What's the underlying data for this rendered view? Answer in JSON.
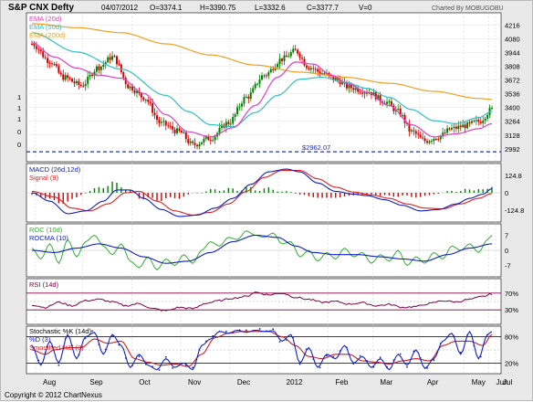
{
  "header": {
    "symbol": "S&P CNX Defty",
    "date": "04/07/2012",
    "open": "O=3374.1",
    "high": "H=3390.75",
    "low": "L=3332.6",
    "close": "C=3377.7",
    "volume": "V=0",
    "charted_by": "Charted By MOBUGOBU"
  },
  "footer": {
    "copyright": "Copyright © 2012 ChartNexus"
  },
  "colors": {
    "ema20": "#e040c0",
    "ema50": "#30c0c0",
    "ema200": "#f0a020",
    "bull": "#008000",
    "bear": "#d00000",
    "support": "#2030c0",
    "macd": "#1020c0",
    "signal": "#e02020",
    "roc": "#30b030",
    "rocma": "#1020c0",
    "rsi": "#800040",
    "stoch_k": "#1020d0",
    "stoch_d": "#d02020",
    "stoch_sd": "#2020a0"
  },
  "chart_data": [
    {
      "type": "candlestick",
      "panel": "price",
      "legend": [
        "EMA (20d)",
        "EMA (50d)",
        "EMA (200d)"
      ],
      "y_ticks": [
        "4216",
        "4080",
        "3944",
        "3808",
        "3672",
        "3536",
        "3400",
        "3264",
        "3128",
        "2992"
      ],
      "ylim": [
        2900,
        4310
      ],
      "left_ticks": [
        "1",
        "1",
        "1",
        "0",
        "0"
      ],
      "support_level": 2962.07,
      "support_label": "$2962.07",
      "x_ticks": [
        "Aug",
        "Sep",
        "Oct",
        "Nov",
        "Dec",
        "2012",
        "Feb",
        "Mar",
        "Apr",
        "May",
        "Jun",
        "Jul"
      ],
      "close_anchors": [
        [
          0,
          4030
        ],
        [
          8,
          3860
        ],
        [
          14,
          3700
        ],
        [
          22,
          3620
        ],
        [
          30,
          3800
        ],
        [
          36,
          3900
        ],
        [
          44,
          3600
        ],
        [
          50,
          3500
        ],
        [
          58,
          3240
        ],
        [
          66,
          3160
        ],
        [
          72,
          3030
        ],
        [
          80,
          3100
        ],
        [
          88,
          3250
        ],
        [
          96,
          3500
        ],
        [
          104,
          3720
        ],
        [
          112,
          3880
        ],
        [
          118,
          3960
        ],
        [
          124,
          3800
        ],
        [
          130,
          3740
        ],
        [
          136,
          3680
        ],
        [
          142,
          3600
        ],
        [
          150,
          3560
        ],
        [
          158,
          3460
        ],
        [
          164,
          3360
        ],
        [
          170,
          3160
        ],
        [
          176,
          3070
        ],
        [
          182,
          3110
        ],
        [
          188,
          3190
        ],
        [
          194,
          3220
        ],
        [
          200,
          3260
        ],
        [
          206,
          3380
        ]
      ],
      "ema20_anchors": [
        [
          0,
          4040
        ],
        [
          10,
          3900
        ],
        [
          20,
          3790
        ],
        [
          30,
          3720
        ],
        [
          40,
          3690
        ],
        [
          50,
          3540
        ],
        [
          60,
          3330
        ],
        [
          70,
          3160
        ],
        [
          80,
          3110
        ],
        [
          90,
          3200
        ],
        [
          100,
          3420
        ],
        [
          110,
          3700
        ],
        [
          118,
          3850
        ],
        [
          126,
          3830
        ],
        [
          134,
          3720
        ],
        [
          142,
          3630
        ],
        [
          150,
          3550
        ],
        [
          160,
          3420
        ],
        [
          170,
          3230
        ],
        [
          180,
          3110
        ],
        [
          190,
          3140
        ],
        [
          200,
          3190
        ],
        [
          206,
          3240
        ]
      ],
      "ema50_anchors": [
        [
          0,
          4140
        ],
        [
          20,
          3950
        ],
        [
          40,
          3780
        ],
        [
          60,
          3520
        ],
        [
          70,
          3360
        ],
        [
          80,
          3230
        ],
        [
          90,
          3210
        ],
        [
          100,
          3350
        ],
        [
          110,
          3520
        ],
        [
          120,
          3680
        ],
        [
          130,
          3700
        ],
        [
          140,
          3650
        ],
        [
          150,
          3590
        ],
        [
          160,
          3500
        ],
        [
          170,
          3380
        ],
        [
          180,
          3270
        ],
        [
          190,
          3240
        ],
        [
          200,
          3300
        ],
        [
          206,
          3360
        ]
      ],
      "ema200_anchors": [
        [
          0,
          4230
        ],
        [
          20,
          4190
        ],
        [
          40,
          4140
        ],
        [
          60,
          4030
        ],
        [
          80,
          3920
        ],
        [
          100,
          3820
        ],
        [
          120,
          3750
        ],
        [
          140,
          3700
        ],
        [
          160,
          3640
        ],
        [
          180,
          3560
        ],
        [
          200,
          3490
        ],
        [
          206,
          3480
        ]
      ]
    },
    {
      "type": "area",
      "panel": "macd",
      "legend": [
        "MACD (26d,12d)",
        "Signal (9)"
      ],
      "y_ticks": [
        "124.8",
        "0",
        "-124.8"
      ],
      "ylim": [
        -190,
        190
      ],
      "macd_anchors": [
        [
          0,
          0
        ],
        [
          8,
          -60
        ],
        [
          16,
          -150
        ],
        [
          24,
          -130
        ],
        [
          32,
          -60
        ],
        [
          38,
          20
        ],
        [
          44,
          20
        ],
        [
          50,
          -40
        ],
        [
          58,
          -120
        ],
        [
          66,
          -170
        ],
        [
          74,
          -160
        ],
        [
          82,
          -110
        ],
        [
          90,
          -40
        ],
        [
          98,
          60
        ],
        [
          106,
          150
        ],
        [
          114,
          170
        ],
        [
          120,
          150
        ],
        [
          128,
          70
        ],
        [
          136,
          10
        ],
        [
          144,
          -10
        ],
        [
          150,
          -20
        ],
        [
          158,
          -50
        ],
        [
          166,
          -90
        ],
        [
          174,
          -130
        ],
        [
          182,
          -120
        ],
        [
          190,
          -80
        ],
        [
          196,
          -40
        ],
        [
          202,
          -10
        ],
        [
          206,
          30
        ]
      ],
      "signal_anchors": [
        [
          0,
          10
        ],
        [
          10,
          -30
        ],
        [
          18,
          -110
        ],
        [
          26,
          -130
        ],
        [
          34,
          -80
        ],
        [
          42,
          0
        ],
        [
          48,
          10
        ],
        [
          56,
          -60
        ],
        [
          64,
          -130
        ],
        [
          72,
          -160
        ],
        [
          80,
          -140
        ],
        [
          88,
          -80
        ],
        [
          96,
          10
        ],
        [
          104,
          110
        ],
        [
          112,
          160
        ],
        [
          120,
          160
        ],
        [
          128,
          100
        ],
        [
          136,
          40
        ],
        [
          144,
          5
        ],
        [
          152,
          -15
        ],
        [
          160,
          -40
        ],
        [
          168,
          -80
        ],
        [
          176,
          -110
        ],
        [
          184,
          -115
        ],
        [
          192,
          -80
        ],
        [
          200,
          -40
        ],
        [
          206,
          -5
        ]
      ]
    },
    {
      "type": "line",
      "panel": "roc",
      "legend": [
        "ROC (10d)",
        "ROCMA (10)"
      ],
      "y_ticks": [
        "7",
        "0",
        "-7"
      ],
      "ylim": [
        -11,
        11
      ],
      "roc_anchors": [
        [
          0,
          1
        ],
        [
          4,
          -4
        ],
        [
          8,
          3
        ],
        [
          12,
          -6
        ],
        [
          16,
          5
        ],
        [
          20,
          -3
        ],
        [
          24,
          4
        ],
        [
          28,
          7
        ],
        [
          32,
          2
        ],
        [
          36,
          -2
        ],
        [
          40,
          3
        ],
        [
          44,
          -5
        ],
        [
          48,
          -8
        ],
        [
          52,
          -3
        ],
        [
          56,
          -9
        ],
        [
          60,
          -4
        ],
        [
          64,
          -7
        ],
        [
          68,
          -2
        ],
        [
          72,
          -6
        ],
        [
          76,
          0
        ],
        [
          80,
          4
        ],
        [
          84,
          2
        ],
        [
          88,
          6
        ],
        [
          92,
          5
        ],
        [
          96,
          9
        ],
        [
          100,
          7
        ],
        [
          104,
          6
        ],
        [
          108,
          8
        ],
        [
          112,
          3
        ],
        [
          116,
          4
        ],
        [
          120,
          -3
        ],
        [
          124,
          0
        ],
        [
          128,
          -5
        ],
        [
          132,
          -1
        ],
        [
          136,
          -4
        ],
        [
          140,
          1
        ],
        [
          144,
          -3
        ],
        [
          148,
          -1
        ],
        [
          152,
          -6
        ],
        [
          156,
          -2
        ],
        [
          160,
          -5
        ],
        [
          164,
          0
        ],
        [
          168,
          -7
        ],
        [
          172,
          -3
        ],
        [
          176,
          -6
        ],
        [
          180,
          -1
        ],
        [
          184,
          -4
        ],
        [
          188,
          2
        ],
        [
          192,
          0
        ],
        [
          196,
          3
        ],
        [
          200,
          -1
        ],
        [
          204,
          5
        ],
        [
          206,
          7
        ]
      ],
      "rocma_anchors": [
        [
          0,
          0
        ],
        [
          10,
          -1
        ],
        [
          20,
          1
        ],
        [
          30,
          3
        ],
        [
          40,
          1
        ],
        [
          50,
          -3
        ],
        [
          60,
          -6
        ],
        [
          70,
          -5
        ],
        [
          80,
          -1
        ],
        [
          90,
          4
        ],
        [
          100,
          7
        ],
        [
          110,
          6
        ],
        [
          118,
          2
        ],
        [
          126,
          -1
        ],
        [
          136,
          -2
        ],
        [
          146,
          -2
        ],
        [
          156,
          -3
        ],
        [
          166,
          -4
        ],
        [
          176,
          -5
        ],
        [
          186,
          -2
        ],
        [
          196,
          1
        ],
        [
          206,
          3
        ]
      ]
    },
    {
      "type": "line",
      "panel": "rsi",
      "legend": [
        "RSI (14d)"
      ],
      "y_ticks": [
        "70%",
        "30%"
      ],
      "ylim": [
        0,
        100
      ],
      "rsi_anchors": [
        [
          0,
          42
        ],
        [
          6,
          36
        ],
        [
          12,
          48
        ],
        [
          18,
          40
        ],
        [
          24,
          52
        ],
        [
          30,
          55
        ],
        [
          36,
          49
        ],
        [
          42,
          40
        ],
        [
          48,
          45
        ],
        [
          54,
          33
        ],
        [
          60,
          28
        ],
        [
          66,
          36
        ],
        [
          72,
          33
        ],
        [
          78,
          46
        ],
        [
          84,
          52
        ],
        [
          90,
          58
        ],
        [
          96,
          62
        ],
        [
          100,
          72
        ],
        [
          106,
          66
        ],
        [
          112,
          70
        ],
        [
          118,
          60
        ],
        [
          124,
          55
        ],
        [
          130,
          48
        ],
        [
          136,
          50
        ],
        [
          142,
          44
        ],
        [
          148,
          47
        ],
        [
          154,
          40
        ],
        [
          160,
          43
        ],
        [
          166,
          36
        ],
        [
          172,
          38
        ],
        [
          178,
          45
        ],
        [
          184,
          52
        ],
        [
          190,
          49
        ],
        [
          196,
          55
        ],
        [
          202,
          62
        ],
        [
          206,
          68
        ]
      ]
    },
    {
      "type": "line",
      "panel": "stochastic",
      "legend": [
        "Stochastic %K (14d)",
        "%D (3)",
        "Smoothed %D (3)"
      ],
      "y_ticks": [
        "80%",
        "20%"
      ],
      "ylim": [
        0,
        100
      ],
      "k_anchors": [
        [
          0,
          60
        ],
        [
          4,
          15
        ],
        [
          8,
          70
        ],
        [
          12,
          20
        ],
        [
          16,
          85
        ],
        [
          20,
          30
        ],
        [
          24,
          80
        ],
        [
          28,
          90
        ],
        [
          32,
          40
        ],
        [
          36,
          85
        ],
        [
          40,
          60
        ],
        [
          44,
          10
        ],
        [
          48,
          40
        ],
        [
          52,
          15
        ],
        [
          56,
          5
        ],
        [
          60,
          30
        ],
        [
          64,
          10
        ],
        [
          68,
          20
        ],
        [
          72,
          5
        ],
        [
          76,
          60
        ],
        [
          80,
          75
        ],
        [
          84,
          92
        ],
        [
          88,
          88
        ],
        [
          92,
          95
        ],
        [
          96,
          90
        ],
        [
          100,
          95
        ],
        [
          104,
          92
        ],
        [
          108,
          94
        ],
        [
          112,
          70
        ],
        [
          116,
          85
        ],
        [
          120,
          20
        ],
        [
          124,
          55
        ],
        [
          128,
          10
        ],
        [
          132,
          40
        ],
        [
          136,
          30
        ],
        [
          140,
          60
        ],
        [
          144,
          20
        ],
        [
          148,
          35
        ],
        [
          152,
          10
        ],
        [
          156,
          30
        ],
        [
          160,
          5
        ],
        [
          164,
          40
        ],
        [
          168,
          15
        ],
        [
          172,
          50
        ],
        [
          176,
          8
        ],
        [
          180,
          30
        ],
        [
          184,
          70
        ],
        [
          188,
          88
        ],
        [
          192,
          40
        ],
        [
          196,
          92
        ],
        [
          200,
          30
        ],
        [
          204,
          85
        ],
        [
          206,
          92
        ]
      ],
      "d_anchors": [
        [
          0,
          50
        ],
        [
          6,
          40
        ],
        [
          10,
          50
        ],
        [
          16,
          55
        ],
        [
          22,
          55
        ],
        [
          28,
          75
        ],
        [
          34,
          65
        ],
        [
          40,
          70
        ],
        [
          46,
          30
        ],
        [
          52,
          22
        ],
        [
          58,
          15
        ],
        [
          64,
          18
        ],
        [
          70,
          12
        ],
        [
          76,
          40
        ],
        [
          82,
          78
        ],
        [
          88,
          88
        ],
        [
          94,
          92
        ],
        [
          100,
          92
        ],
        [
          106,
          92
        ],
        [
          112,
          80
        ],
        [
          118,
          60
        ],
        [
          124,
          35
        ],
        [
          130,
          30
        ],
        [
          136,
          40
        ],
        [
          142,
          40
        ],
        [
          148,
          25
        ],
        [
          154,
          22
        ],
        [
          160,
          18
        ],
        [
          166,
          25
        ],
        [
          172,
          30
        ],
        [
          178,
          25
        ],
        [
          184,
          60
        ],
        [
          190,
          70
        ],
        [
          196,
          70
        ],
        [
          202,
          60
        ],
        [
          206,
          85
        ]
      ]
    }
  ]
}
